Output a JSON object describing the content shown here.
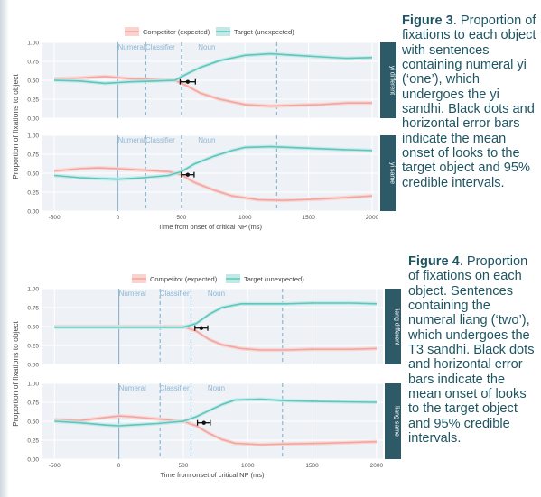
{
  "colors": {
    "competitor": "#f4a5a0",
    "competitor_fill": "#f8d3d0",
    "target": "#5cc6bf",
    "target_fill": "#c2e9e5",
    "panel_bg": "#eef1f5",
    "strip": "#2e5a68",
    "event_line": "#8cb8d6",
    "caption_text": "#1f5563"
  },
  "captions": [
    {
      "number": "Figure 3",
      "text": ". Proportion of fixations to each object with sentences containing numeral yi (‘one’), which undergoes the yi sandhi. Black dots and horizontal error bars indicate the mean onset of looks to the target object and 95% credible intervals."
    },
    {
      "number": "Figure 4",
      "text": ". Proportion of fixations on each object. Sentences containing the numeral liang (‘two’), which undergoes the T3 sandhi. Black dots and horizontal error bars indicate the mean onset of looks to the target object and 95% credible intervals."
    }
  ],
  "chart_data": [
    {
      "type": "line",
      "figure": "Figure 3",
      "legend": [
        "Competitor (expected)",
        "Target (unexpected)"
      ],
      "legend_position": "top",
      "xlabel": "Time from onset of critical NP (ms)",
      "ylabel": "Proportion of fixations to object",
      "xlim": [
        -600,
        2050
      ],
      "ylim": [
        0,
        1
      ],
      "x_ticks": [
        -500,
        0,
        500,
        1000,
        1500,
        2000
      ],
      "y_ticks": [
        "0.00",
        "0.25",
        "0.50",
        "0.75",
        "1.00"
      ],
      "events": [
        {
          "label": "Numeral",
          "x": 0,
          "style": "solid"
        },
        {
          "label": "Classifier",
          "x": 220,
          "style": "dashed"
        },
        {
          "label": "Noun",
          "x": 500,
          "style": "dashed"
        },
        {
          "label": "",
          "x": 1250,
          "style": "dashed"
        }
      ],
      "panels": [
        {
          "label": "yi different",
          "onset": {
            "x": 550,
            "lo": 490,
            "hi": 610,
            "y": 0.48
          },
          "series": [
            {
              "name": "Competitor (expected)",
              "points": [
                [
                  -500,
                  0.52
                ],
                [
                  -300,
                  0.53
                ],
                [
                  -100,
                  0.55
                ],
                [
                  100,
                  0.52
                ],
                [
                  300,
                  0.51
                ],
                [
                  450,
                  0.5
                ],
                [
                  550,
                  0.42
                ],
                [
                  650,
                  0.33
                ],
                [
                  800,
                  0.25
                ],
                [
                  1000,
                  0.18
                ],
                [
                  1200,
                  0.16
                ],
                [
                  1400,
                  0.17
                ],
                [
                  1600,
                  0.18
                ],
                [
                  1800,
                  0.2
                ],
                [
                  2000,
                  0.2
                ]
              ]
            },
            {
              "name": "Target (unexpected)",
              "points": [
                [
                  -500,
                  0.5
                ],
                [
                  -300,
                  0.49
                ],
                [
                  -100,
                  0.46
                ],
                [
                  100,
                  0.48
                ],
                [
                  300,
                  0.49
                ],
                [
                  450,
                  0.5
                ],
                [
                  550,
                  0.59
                ],
                [
                  650,
                  0.67
                ],
                [
                  800,
                  0.76
                ],
                [
                  1000,
                  0.83
                ],
                [
                  1200,
                  0.85
                ],
                [
                  1400,
                  0.83
                ],
                [
                  1600,
                  0.81
                ],
                [
                  1800,
                  0.79
                ],
                [
                  2000,
                  0.8
                ]
              ]
            }
          ]
        },
        {
          "label": "yi same",
          "onset": {
            "x": 550,
            "lo": 500,
            "hi": 600,
            "y": 0.48
          },
          "series": [
            {
              "name": "Competitor (expected)",
              "points": [
                [
                  -500,
                  0.53
                ],
                [
                  -300,
                  0.56
                ],
                [
                  -150,
                  0.57
                ],
                [
                  0,
                  0.56
                ],
                [
                  200,
                  0.54
                ],
                [
                  400,
                  0.52
                ],
                [
                  500,
                  0.48
                ],
                [
                  600,
                  0.38
                ],
                [
                  750,
                  0.28
                ],
                [
                  900,
                  0.2
                ],
                [
                  1100,
                  0.15
                ],
                [
                  1300,
                  0.14
                ],
                [
                  1600,
                  0.16
                ],
                [
                  1800,
                  0.18
                ],
                [
                  2000,
                  0.2
                ]
              ]
            },
            {
              "name": "Target (unexpected)",
              "points": [
                [
                  -500,
                  0.47
                ],
                [
                  -300,
                  0.44
                ],
                [
                  -150,
                  0.43
                ],
                [
                  0,
                  0.42
                ],
                [
                  200,
                  0.44
                ],
                [
                  400,
                  0.47
                ],
                [
                  500,
                  0.52
                ],
                [
                  600,
                  0.62
                ],
                [
                  750,
                  0.72
                ],
                [
                  900,
                  0.8
                ],
                [
                  1000,
                  0.84
                ],
                [
                  1200,
                  0.85
                ],
                [
                  1500,
                  0.83
                ],
                [
                  1800,
                  0.81
                ],
                [
                  2000,
                  0.8
                ]
              ]
            }
          ]
        }
      ]
    },
    {
      "type": "line",
      "figure": "Figure 4",
      "legend": [
        "Competitor (expected)",
        "Target (unexpected)"
      ],
      "legend_position": "top",
      "xlabel": "Time from onset of critical NP (ms)",
      "ylabel": "Proportion of fixations to object",
      "xlim": [
        -600,
        2050
      ],
      "ylim": [
        0,
        1
      ],
      "x_ticks": [
        -500,
        0,
        500,
        1000,
        1500,
        2000
      ],
      "y_ticks": [
        "0.00",
        "0.25",
        "0.50",
        "0.75",
        "1.00"
      ],
      "events": [
        {
          "label": "Numeral",
          "x": 0,
          "style": "solid"
        },
        {
          "label": "Classifier",
          "x": 320,
          "style": "dashed"
        },
        {
          "label": "Noun",
          "x": 560,
          "style": "dashed"
        },
        {
          "label": "",
          "x": 1270,
          "style": "dashed"
        }
      ],
      "panels": [
        {
          "label": "liang different",
          "onset": {
            "x": 640,
            "lo": 590,
            "hi": 690,
            "y": 0.48
          },
          "series": [
            {
              "name": "Competitor (expected)",
              "points": [
                [
                  -500,
                  0.5
                ],
                [
                  -300,
                  0.5
                ],
                [
                  -100,
                  0.5
                ],
                [
                  100,
                  0.5
                ],
                [
                  300,
                  0.5
                ],
                [
                  500,
                  0.5
                ],
                [
                  600,
                  0.44
                ],
                [
                  700,
                  0.33
                ],
                [
                  800,
                  0.26
                ],
                [
                  950,
                  0.21
                ],
                [
                  1100,
                  0.19
                ],
                [
                  1300,
                  0.19
                ],
                [
                  1500,
                  0.2
                ],
                [
                  1800,
                  0.2
                ],
                [
                  2000,
                  0.21
                ]
              ]
            },
            {
              "name": "Target (unexpected)",
              "points": [
                [
                  -500,
                  0.49
                ],
                [
                  -300,
                  0.49
                ],
                [
                  -100,
                  0.49
                ],
                [
                  100,
                  0.49
                ],
                [
                  300,
                  0.49
                ],
                [
                  500,
                  0.49
                ],
                [
                  600,
                  0.54
                ],
                [
                  700,
                  0.66
                ],
                [
                  800,
                  0.75
                ],
                [
                  950,
                  0.8
                ],
                [
                  1100,
                  0.8
                ],
                [
                  1300,
                  0.8
                ],
                [
                  1500,
                  0.81
                ],
                [
                  1800,
                  0.81
                ],
                [
                  2000,
                  0.8
                ]
              ]
            }
          ]
        },
        {
          "label": "liang same",
          "onset": {
            "x": 660,
            "lo": 610,
            "hi": 710,
            "y": 0.48
          },
          "series": [
            {
              "name": "Competitor (expected)",
              "points": [
                [
                  -500,
                  0.52
                ],
                [
                  -300,
                  0.51
                ],
                [
                  -100,
                  0.55
                ],
                [
                  0,
                  0.57
                ],
                [
                  100,
                  0.56
                ],
                [
                  300,
                  0.53
                ],
                [
                  500,
                  0.5
                ],
                [
                  600,
                  0.44
                ],
                [
                  700,
                  0.34
                ],
                [
                  800,
                  0.26
                ],
                [
                  900,
                  0.21
                ],
                [
                  1100,
                  0.19
                ],
                [
                  1300,
                  0.2
                ],
                [
                  1600,
                  0.21
                ],
                [
                  2000,
                  0.23
                ]
              ]
            },
            {
              "name": "Target (unexpected)",
              "points": [
                [
                  -500,
                  0.5
                ],
                [
                  -300,
                  0.48
                ],
                [
                  -100,
                  0.45
                ],
                [
                  0,
                  0.44
                ],
                [
                  100,
                  0.45
                ],
                [
                  300,
                  0.47
                ],
                [
                  500,
                  0.5
                ],
                [
                  600,
                  0.56
                ],
                [
                  700,
                  0.64
                ],
                [
                  800,
                  0.72
                ],
                [
                  900,
                  0.78
                ],
                [
                  1100,
                  0.79
                ],
                [
                  1300,
                  0.77
                ],
                [
                  1600,
                  0.76
                ],
                [
                  2000,
                  0.75
                ]
              ]
            }
          ]
        }
      ]
    }
  ]
}
